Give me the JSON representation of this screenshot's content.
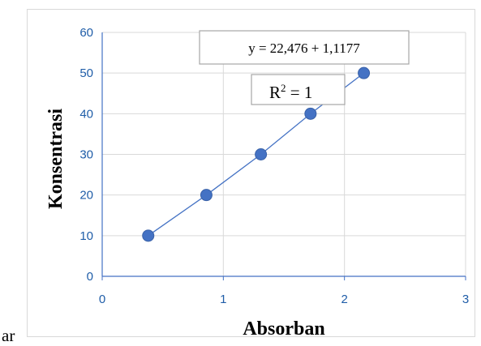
{
  "chart_data": {
    "type": "scatter",
    "xlabel": "Absorban",
    "ylabel": "Konsentrasi",
    "xlim": [
      0,
      3
    ],
    "ylim": [
      0,
      60
    ],
    "xticks": [
      "0",
      "1",
      "2",
      "3"
    ],
    "yticks": [
      "0",
      "10",
      "20",
      "30",
      "40",
      "50",
      "60"
    ],
    "grid": true,
    "series": [
      {
        "x": [
          0.38,
          0.86,
          1.31,
          1.72,
          2.16
        ],
        "y": [
          10,
          20,
          30,
          40,
          50
        ],
        "marker": "circle",
        "line": "straight",
        "color": "#4472c4"
      }
    ],
    "annotations": {
      "equation": "y = 22,476 + 1,1177",
      "r2_prefix": "R",
      "r2_sup": "2",
      "r2_suffix": " = 1"
    }
  },
  "stray_text": "ar"
}
